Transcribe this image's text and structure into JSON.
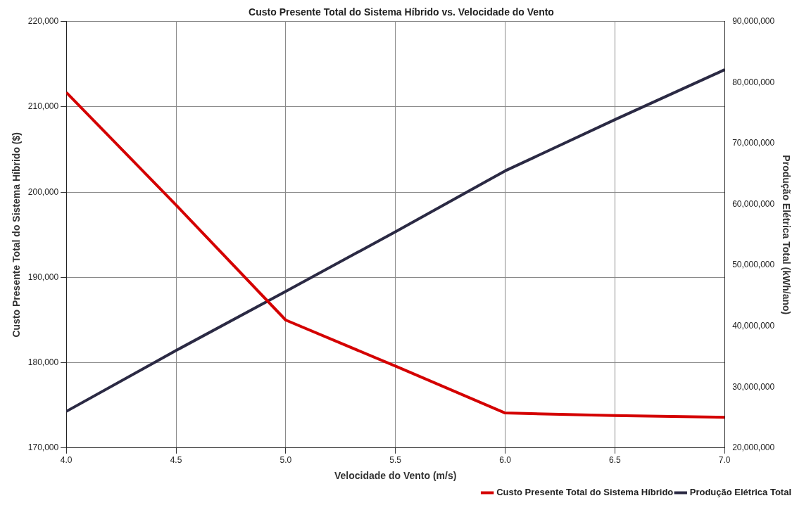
{
  "chart_data": {
    "type": "line",
    "title": "Custo Presente Total do Sistema Híbrido vs. Velocidade do Vento",
    "xlabel": "Velocidade do Vento (m/s)",
    "ylabel": "Custo Presente Total do Sistema Híbrido ($)",
    "y2label": "Produção Elétrica Total (kWh/ano)",
    "x": [
      4.0,
      4.5,
      5.0,
      5.5,
      6.0,
      6.5,
      7.0
    ],
    "series": [
      {
        "name": "Custo Presente Total do Sistema Híbrido",
        "color": "#d40000",
        "values": [
          211700,
          198500,
          185000,
          179600,
          174100,
          173800,
          173600
        ]
      },
      {
        "name": "Produção Elétrica Total",
        "color": "#2b2a44",
        "axis": "y2",
        "values": [
          26000000,
          36000000,
          45700000,
          55500000,
          65500000,
          73900000,
          82100000
        ]
      }
    ],
    "xlim": [
      4.0,
      7.0
    ],
    "xticks": [
      {
        "value": 4,
        "label": "4.0"
      },
      4.5,
      {
        "value": 5,
        "label": "5.0"
      },
      5.5,
      {
        "value": 6,
        "label": "6.0"
      },
      6.5,
      {
        "value": 7,
        "label": "7.0"
      }
    ],
    "ylim": [
      170000,
      220000
    ],
    "yticks": [
      {
        "value": 170000,
        "label": "170,000"
      },
      {
        "value": 180000,
        "label": "180,000"
      },
      {
        "value": 190000,
        "label": "190,000"
      },
      {
        "value": 200000,
        "label": "200,000"
      },
      {
        "value": 210000,
        "label": "210,000"
      },
      {
        "value": 220000,
        "label": "220,000"
      }
    ],
    "y2lim": [
      20000000,
      90000000
    ],
    "y2ticks": [
      {
        "value": 20000000,
        "label": "20,000,000"
      },
      {
        "value": 30000000,
        "label": "30,000,000"
      },
      {
        "value": 40000000,
        "label": "40,000,000"
      },
      {
        "value": 50000000,
        "label": "50,000,000"
      },
      {
        "value": 60000000,
        "label": "60,000,000"
      },
      {
        "value": 70000000,
        "label": "70,000,000"
      },
      {
        "value": 80000000,
        "label": "80,000,000"
      },
      {
        "value": 90000000,
        "label": "90,000,000"
      }
    ],
    "grid": true,
    "legend": "bottom right",
    "marker": "none",
    "line_style": "solid"
  }
}
